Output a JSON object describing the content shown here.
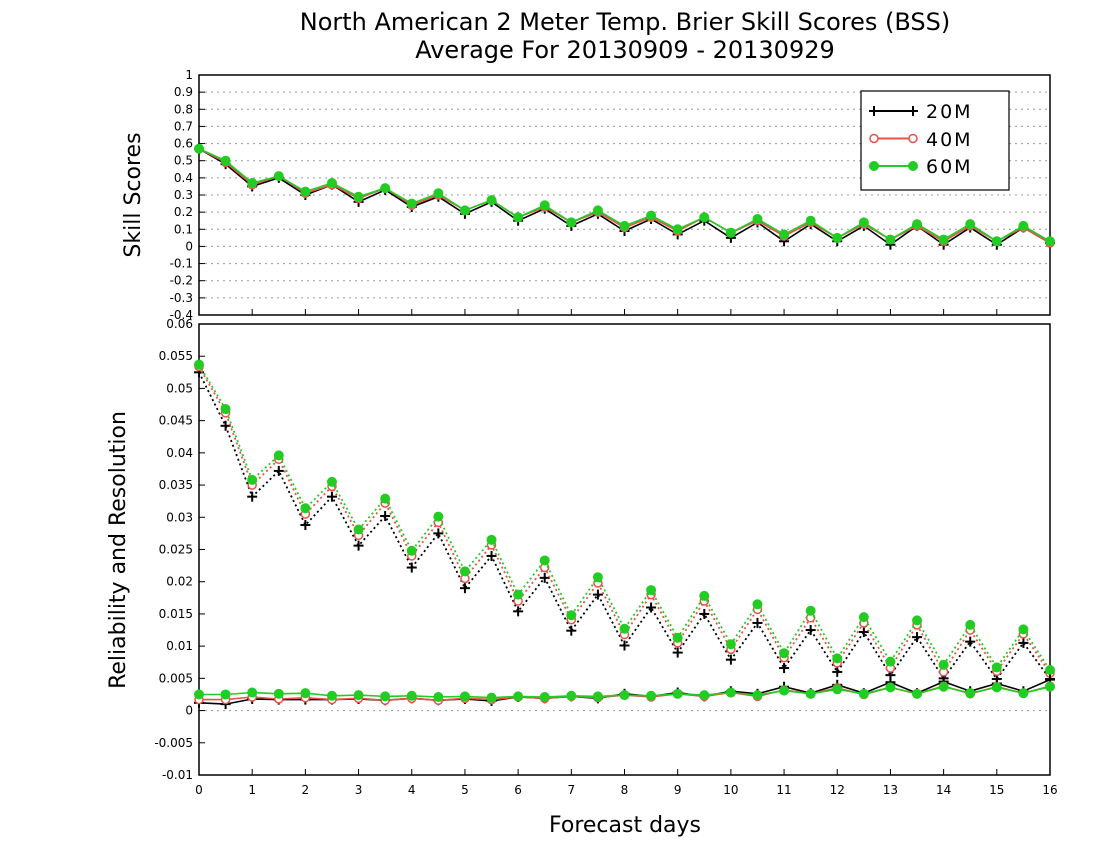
{
  "chart_data": {
    "type": "line",
    "title": "North American 2 Meter Temp. Brier Skill Scores (BSS)",
    "subtitle": "Average For 20130909 - 20130929",
    "xlabel": "Forecast days",
    "x_ticks": [
      "0",
      "1",
      "2",
      "3",
      "4",
      "5",
      "6",
      "7",
      "8",
      "9",
      "10",
      "11",
      "12",
      "13",
      "14",
      "15",
      "16"
    ],
    "x": [
      0,
      0.5,
      1,
      1.5,
      2,
      2.5,
      3,
      3.5,
      4,
      4.5,
      5,
      5.5,
      6,
      6.5,
      7,
      7.5,
      8,
      8.5,
      9,
      9.5,
      10,
      10.5,
      11,
      11.5,
      12,
      12.5,
      13,
      13.5,
      14,
      14.5,
      15,
      15.5,
      16
    ],
    "xlim": [
      0,
      16
    ],
    "colors": {
      "20M": "#000000",
      "40M": "#e8524a",
      "60M": "#22cc22"
    },
    "legend": {
      "placement": "top-right",
      "entries": [
        {
          "name": "20M",
          "marker": "plus"
        },
        {
          "name": "40M",
          "marker": "open-circle"
        },
        {
          "name": "60M",
          "marker": "filled-circle"
        }
      ]
    },
    "panels": [
      {
        "name": "skill",
        "ylabel": "Skill Scores",
        "ylim": [
          -0.4,
          1
        ],
        "y_ticks": [
          "1",
          "0.9",
          "0.8",
          "0.7",
          "0.6",
          "0.5",
          "0.4",
          "0.3",
          "0.2",
          "0.1",
          "0",
          "-0.1",
          "-0.2",
          "-0.3",
          "-0.4"
        ],
        "grid": true,
        "series": [
          {
            "name": "20M",
            "marker": "plus",
            "style": "solid",
            "values": [
              0.57,
              0.48,
              0.35,
              0.4,
              0.3,
              0.36,
              0.26,
              0.33,
              0.23,
              0.29,
              0.19,
              0.26,
              0.15,
              0.22,
              0.12,
              0.19,
              0.09,
              0.16,
              0.07,
              0.15,
              0.05,
              0.14,
              0.03,
              0.13,
              0.03,
              0.12,
              0.01,
              0.12,
              0.01,
              0.11,
              0.01,
              0.11,
              0.02
            ]
          },
          {
            "name": "40M",
            "marker": "open-circle",
            "style": "solid",
            "values": [
              0.57,
              0.49,
              0.36,
              0.41,
              0.31,
              0.36,
              0.28,
              0.34,
              0.24,
              0.3,
              0.21,
              0.27,
              0.17,
              0.23,
              0.14,
              0.2,
              0.11,
              0.17,
              0.09,
              0.17,
              0.08,
              0.15,
              0.06,
              0.14,
              0.05,
              0.13,
              0.04,
              0.12,
              0.03,
              0.12,
              0.03,
              0.11,
              0.02
            ]
          },
          {
            "name": "60M",
            "marker": "filled-circle",
            "style": "solid",
            "values": [
              0.57,
              0.5,
              0.37,
              0.41,
              0.32,
              0.37,
              0.29,
              0.34,
              0.25,
              0.31,
              0.21,
              0.27,
              0.17,
              0.24,
              0.14,
              0.21,
              0.12,
              0.18,
              0.1,
              0.17,
              0.08,
              0.16,
              0.07,
              0.15,
              0.05,
              0.14,
              0.04,
              0.13,
              0.04,
              0.13,
              0.03,
              0.12,
              0.03
            ]
          }
        ]
      },
      {
        "name": "reliability-resolution",
        "ylabel": "Reliability and Resolution",
        "ylim": [
          -0.01,
          0.06
        ],
        "y_ticks": [
          "0.06",
          "0.055",
          "0.05",
          "0.045",
          "0.04",
          "0.035",
          "0.03",
          "0.025",
          "0.02",
          "0.015",
          "0.01",
          "0.005",
          "0",
          "-0.005",
          "-0.01"
        ],
        "grid": false,
        "series": [
          {
            "name": "20M",
            "metric": "Resolution",
            "marker": "plus",
            "style": "dotted",
            "values": [
              0.0525,
              0.0442,
              0.0332,
              0.0372,
              0.0288,
              0.0332,
              0.0256,
              0.0302,
              0.0222,
              0.0275,
              0.019,
              0.024,
              0.0154,
              0.0206,
              0.0124,
              0.018,
              0.0101,
              0.016,
              0.009,
              0.015,
              0.0079,
              0.0136,
              0.0066,
              0.0125,
              0.006,
              0.0122,
              0.0055,
              0.0114,
              0.005,
              0.0107,
              0.0049,
              0.0105,
              0.0049
            ]
          },
          {
            "name": "40M",
            "metric": "Resolution",
            "marker": "open-circle",
            "style": "dotted",
            "values": [
              0.0534,
              0.0462,
              0.035,
              0.039,
              0.0305,
              0.0348,
              0.0272,
              0.0322,
              0.024,
              0.0292,
              0.0205,
              0.0257,
              0.017,
              0.0222,
              0.0141,
              0.0198,
              0.0118,
              0.018,
              0.0105,
              0.017,
              0.0095,
              0.0157,
              0.0082,
              0.0144,
              0.0074,
              0.0136,
              0.0066,
              0.0133,
              0.006,
              0.0125,
              0.0061,
              0.0119,
              0.0058
            ]
          },
          {
            "name": "60M",
            "metric": "Resolution",
            "marker": "filled-circle",
            "style": "dotted",
            "values": [
              0.0537,
              0.0468,
              0.0358,
              0.0396,
              0.0314,
              0.0355,
              0.0281,
              0.0329,
              0.0248,
              0.0301,
              0.0216,
              0.0265,
              0.018,
              0.0233,
              0.0148,
              0.0207,
              0.0127,
              0.0187,
              0.0113,
              0.0178,
              0.0103,
              0.0165,
              0.0089,
              0.0155,
              0.0081,
              0.0145,
              0.0076,
              0.014,
              0.0071,
              0.0133,
              0.0067,
              0.0126,
              0.0063
            ]
          },
          {
            "name": "20M",
            "metric": "Reliability",
            "marker": "plus",
            "style": "solid",
            "values": [
              0.0012,
              0.001,
              0.0018,
              0.0017,
              0.0017,
              0.0017,
              0.0018,
              0.0016,
              0.0019,
              0.0016,
              0.0018,
              0.0015,
              0.0021,
              0.0019,
              0.0022,
              0.0019,
              0.0026,
              0.0022,
              0.0028,
              0.0022,
              0.003,
              0.0026,
              0.0037,
              0.0027,
              0.004,
              0.0027,
              0.0044,
              0.0027,
              0.0045,
              0.003,
              0.0042,
              0.003,
              0.0048
            ]
          },
          {
            "name": "40M",
            "metric": "Reliability",
            "marker": "open-circle",
            "style": "solid",
            "values": [
              0.0017,
              0.0017,
              0.0021,
              0.0018,
              0.002,
              0.0017,
              0.0019,
              0.0016,
              0.0019,
              0.0016,
              0.0019,
              0.0017,
              0.0021,
              0.0019,
              0.0022,
              0.002,
              0.0024,
              0.0021,
              0.0026,
              0.0022,
              0.0028,
              0.0022,
              0.0032,
              0.0026,
              0.0035,
              0.0025,
              0.0036,
              0.0026,
              0.0038,
              0.0026,
              0.0037,
              0.0027,
              0.0038
            ]
          },
          {
            "name": "60M",
            "metric": "Reliability",
            "marker": "filled-circle",
            "style": "solid",
            "values": [
              0.0025,
              0.0025,
              0.0028,
              0.0026,
              0.0027,
              0.0023,
              0.0024,
              0.0022,
              0.0023,
              0.0021,
              0.0022,
              0.002,
              0.0022,
              0.0021,
              0.0023,
              0.0022,
              0.0024,
              0.0023,
              0.0026,
              0.0024,
              0.0028,
              0.0024,
              0.0031,
              0.0026,
              0.0033,
              0.0026,
              0.0036,
              0.0026,
              0.0037,
              0.0027,
              0.0036,
              0.0027,
              0.0037
            ]
          }
        ]
      }
    ]
  }
}
